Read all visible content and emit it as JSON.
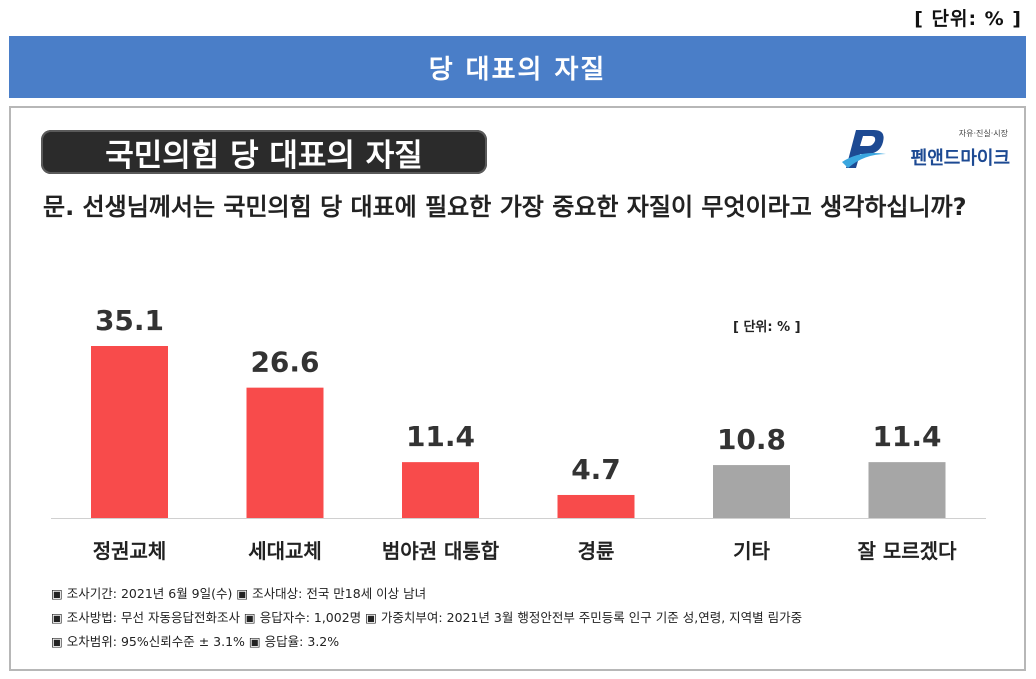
{
  "unit_top": "[ 단위:   % ]",
  "banner_title": "당  대표의  자질",
  "panel_title": "국민의힘 당 대표의 자질",
  "logo": {
    "tagline": "자유·진실·시장",
    "name": "펜앤드마이크"
  },
  "question": "문. 선생님께서는 국민의힘 당 대표에 필요한 가장 중요한 자질이 무엇이라고 생각하십니까?",
  "colors": {
    "red": "#f84b4b",
    "gray": "#a6a6a6",
    "banner": "#4a7ec8"
  },
  "chart_data": {
    "type": "bar",
    "unit_label": "[ 단위: % ]",
    "categories": [
      "정권교체",
      "세대교체",
      "범야권 대통합",
      "경륜",
      "기타",
      "잘 모르겠다"
    ],
    "values": [
      35.1,
      26.6,
      11.4,
      4.7,
      10.8,
      11.4
    ],
    "value_labels": [
      "35.1",
      "26.6",
      "11.4",
      "4.7",
      "10.8",
      "11.4"
    ],
    "bar_colors": [
      "#f84b4b",
      "#f84b4b",
      "#f84b4b",
      "#f84b4b",
      "#a6a6a6",
      "#a6a6a6"
    ],
    "ylim": [
      0,
      35.1
    ]
  },
  "notes": [
    "▣ 조사기간: 2021년  6월  9일(수)    ▣ 조사대상: 전국 만18세 이상 남녀",
    "▣ 조사방법: 무선 자동응답전화조사  ▣ 응답자수: 1,002명 ▣ 가중치부여: 2021년 3월 행정안전부 주민등록 인구 기준 성,연령, 지역별 림가중",
    "▣ 오차범위: 95%신뢰수준  ± 3.1%   ▣ 응답율: 3.2%"
  ]
}
